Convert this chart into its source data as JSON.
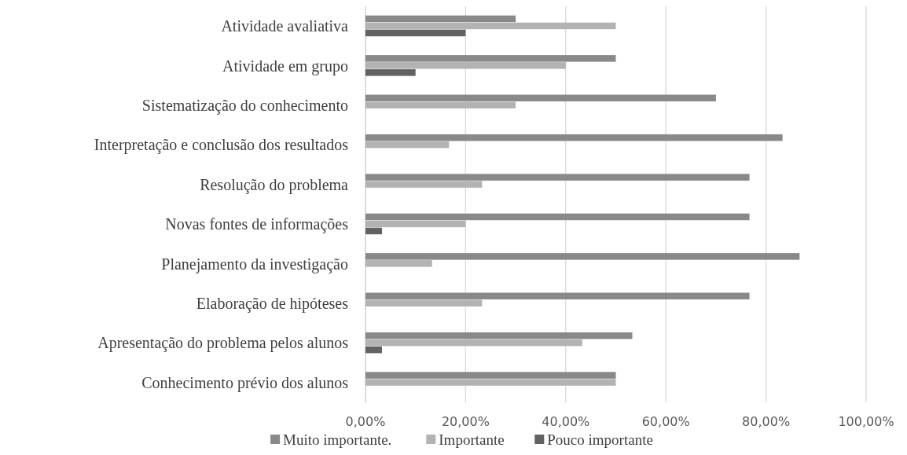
{
  "chart_data": {
    "type": "bar",
    "orientation": "horizontal",
    "categories": [
      "Atividade avaliativa",
      "Atividade em grupo",
      "Sistematização  do conhecimento",
      "Interpretação e conclusão dos resultados",
      "Resolução do problema",
      "Novas fontes de informações",
      "Planejamento da investigação",
      "Elaboração de hipóteses",
      "Apresentação  do problema pelos alunos",
      "Conhecimento prévio dos alunos"
    ],
    "series": [
      {
        "name": "Muito importante.",
        "color": "#898989",
        "values": [
          30,
          50,
          70,
          83.3,
          76.7,
          76.7,
          86.7,
          76.7,
          53.3,
          50
        ]
      },
      {
        "name": "Importante",
        "color": "#b3b3b3",
        "values": [
          50,
          40,
          30,
          16.7,
          23.3,
          20,
          13.3,
          23.3,
          43.3,
          50
        ]
      },
      {
        "name": "Pouco importante",
        "color": "#626262",
        "values": [
          20,
          10,
          null,
          null,
          null,
          3.3,
          null,
          null,
          3.3,
          null
        ]
      }
    ],
    "xlim": [
      0,
      100
    ],
    "xticks": [
      {
        "value": 0,
        "label": "0,00%"
      },
      {
        "value": 20,
        "label": "20,00%"
      },
      {
        "value": 40,
        "label": "40,00%"
      },
      {
        "value": 60,
        "label": "60,00%"
      },
      {
        "value": 80,
        "label": "80,00%"
      },
      {
        "value": 100,
        "label": "100,00%"
      }
    ],
    "grid": "x",
    "legend": "bottom"
  }
}
